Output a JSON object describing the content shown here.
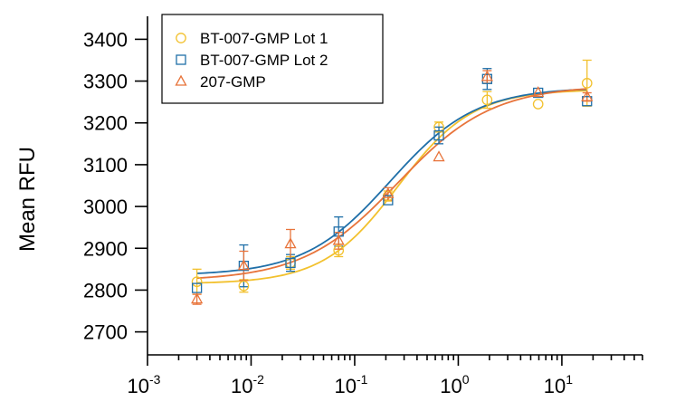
{
  "chart_data": {
    "type": "scatter",
    "title": "",
    "xlabel": "",
    "ylabel": "Mean RFU",
    "xscale": "log",
    "xlim": [
      0.001,
      60
    ],
    "ylim": [
      2645,
      3455
    ],
    "grid": false,
    "legend_position": "top-left",
    "y_ticks": [
      2700,
      2800,
      2900,
      3000,
      3100,
      3200,
      3300,
      3400
    ],
    "x_ticks": [
      {
        "value": 0.001,
        "base": "10",
        "exp": "-3"
      },
      {
        "value": 0.01,
        "base": "10",
        "exp": "-2"
      },
      {
        "value": 0.1,
        "base": "10",
        "exp": "-1"
      },
      {
        "value": 1,
        "base": "10",
        "exp": "0"
      },
      {
        "value": 10,
        "base": "10",
        "exp": "1"
      }
    ],
    "series": [
      {
        "name": "BT-007-GMP Lot 1",
        "marker": "circle",
        "color": "#F2C12E",
        "x": [
          0.003,
          0.0085,
          0.024,
          0.07,
          0.21,
          0.65,
          1.9,
          5.9,
          17.5
        ],
        "y": [
          2820,
          2810,
          2865,
          2895,
          3025,
          3190,
          3255,
          3245,
          3295
        ],
        "err": [
          30,
          15,
          15,
          15,
          12,
          12,
          20,
          0,
          55
        ],
        "fit": {
          "bottom": 2815,
          "top": 3280,
          "ec50": 0.26,
          "hill": 1.2
        }
      },
      {
        "name": "BT-007-GMP Lot 2",
        "marker": "square",
        "color": "#1F6FA8",
        "x": [
          0.003,
          0.0085,
          0.024,
          0.07,
          0.21,
          0.65,
          1.9,
          5.9,
          17.5
        ],
        "y": [
          2805,
          2858,
          2865,
          2940,
          3015,
          3170,
          3305,
          3272,
          3252
        ],
        "err": [
          0,
          50,
          20,
          35,
          0,
          20,
          25,
          0,
          0
        ],
        "fit": {
          "bottom": 2835,
          "top": 3285,
          "ec50": 0.22,
          "hill": 1.05
        }
      },
      {
        "name": "207-GMP",
        "marker": "triangle",
        "color": "#E8743B",
        "x": [
          0.003,
          0.0085,
          0.024,
          0.07,
          0.21,
          0.65,
          1.9,
          5.9,
          17.5
        ],
        "y": [
          2778,
          2858,
          2910,
          2918,
          3030,
          3118,
          3310,
          3272,
          3262
        ],
        "err": [
          12,
          35,
          35,
          20,
          15,
          0,
          15,
          0,
          10
        ],
        "fit": {
          "bottom": 2822,
          "top": 3290,
          "ec50": 0.26,
          "hill": 0.95
        }
      }
    ]
  }
}
